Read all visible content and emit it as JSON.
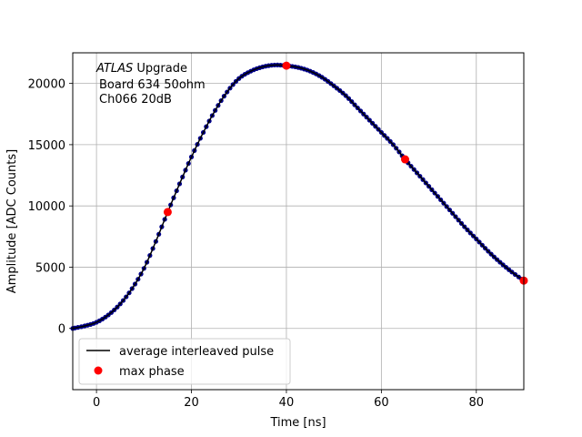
{
  "chart_data": {
    "type": "line",
    "xlabel": "Time [ns]",
    "ylabel": "Amplitude [ADC Counts]",
    "xlim": [
      -5,
      90
    ],
    "ylim": [
      -5000,
      22500
    ],
    "x_ticks": [
      0,
      20,
      40,
      60,
      80
    ],
    "y_ticks": [
      0,
      5000,
      10000,
      15000,
      20000
    ],
    "grid": true,
    "annotation": {
      "line1_italic": "ATLAS",
      "line1_rest": " Upgrade",
      "line2": "Board 634 50ohm",
      "line3": "Ch066 20dB"
    },
    "legend": {
      "placement": "lower-left",
      "entries": [
        "average interleaved pulse",
        "max phase"
      ]
    },
    "colors": {
      "line": "#000000",
      "samples": "#00008b",
      "max_phase": "#ff0000",
      "grid": "#b0b0b0"
    },
    "series": [
      {
        "name": "average interleaved pulse",
        "x": [
          -5,
          -2.5,
          0,
          2.5,
          5,
          7.5,
          10,
          12.5,
          15,
          17.5,
          20,
          22.5,
          25,
          27.5,
          30,
          32.5,
          35,
          37.5,
          40,
          42.5,
          45,
          47.5,
          50,
          52.5,
          55,
          57.5,
          60,
          62.5,
          65,
          67.5,
          70,
          72.5,
          75,
          77.5,
          80,
          82.5,
          85,
          87.5,
          90
        ],
        "y": [
          0,
          200,
          500,
          1100,
          2000,
          3250,
          4900,
          7100,
          9500,
          11800,
          14000,
          16000,
          17800,
          19300,
          20400,
          21000,
          21350,
          21500,
          21450,
          21300,
          21000,
          20500,
          19800,
          19000,
          18000,
          17000,
          16000,
          15000,
          13800,
          12700,
          11600,
          10500,
          9400,
          8300,
          7300,
          6300,
          5400,
          4600,
          3900
        ]
      },
      {
        "name": "max phase",
        "x": [
          15,
          40,
          65,
          90
        ],
        "y": [
          9500,
          21450,
          13800,
          3900
        ]
      }
    ]
  }
}
